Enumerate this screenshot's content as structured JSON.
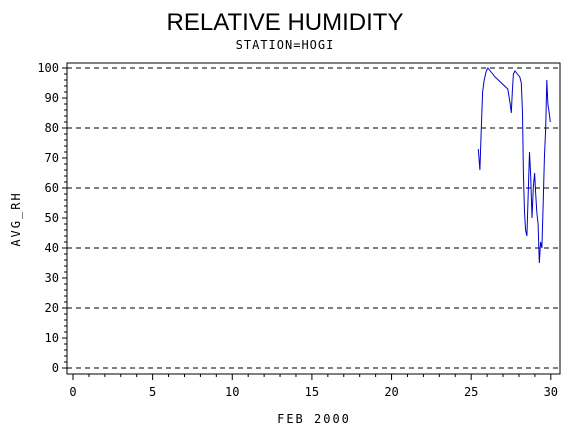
{
  "chart_data": {
    "type": "line",
    "title": "RELATIVE HUMIDITY",
    "subtitle": "STATION=HOGI",
    "xlabel": "FEB 2000",
    "ylabel": "AVG_RH",
    "xlim": [
      0,
      30.2
    ],
    "ylim": [
      0,
      102
    ],
    "xticks": [
      0,
      5,
      10,
      15,
      20,
      25,
      30
    ],
    "yticks": [
      0,
      10,
      20,
      30,
      40,
      50,
      60,
      70,
      80,
      90,
      100
    ],
    "reference_lines": [
      0,
      20,
      40,
      60,
      80,
      100
    ],
    "grid": false,
    "legend": "none",
    "series_color": "#0000cc",
    "series": [
      {
        "x": [
          25.45,
          25.55,
          25.62,
          25.72,
          25.82,
          25.95,
          26.05,
          26.2,
          26.35,
          26.5,
          26.7,
          26.9,
          27.1,
          27.3,
          27.45,
          27.52,
          27.58,
          27.65,
          27.75,
          27.9,
          28.05,
          28.15,
          28.22,
          28.28,
          28.35,
          28.42,
          28.5,
          28.58,
          28.66,
          28.74,
          28.82,
          28.9,
          28.98,
          29.05,
          29.12,
          29.2,
          29.28,
          29.36,
          29.44,
          29.52,
          29.6,
          29.68,
          29.75,
          29.82,
          29.9,
          29.97
        ],
        "y": [
          73,
          66,
          78,
          92,
          96,
          99,
          100,
          99,
          98,
          97,
          96,
          95,
          94,
          93,
          88,
          85,
          92,
          98,
          99,
          98,
          97,
          95,
          85,
          65,
          52,
          46,
          44,
          58,
          72,
          64,
          50,
          60,
          65,
          58,
          52,
          48,
          35,
          42,
          40,
          55,
          70,
          80,
          96,
          88,
          85,
          82
        ]
      }
    ]
  }
}
